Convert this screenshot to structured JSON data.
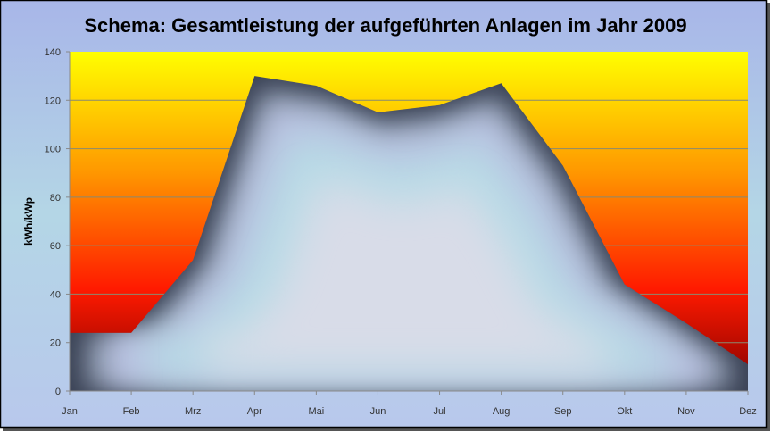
{
  "chart_data": {
    "type": "area",
    "title": "Schema: Gesamtleistung der aufgeführten Anlagen im Jahr 2009",
    "xlabel": "",
    "ylabel": "kWh/kWp",
    "categories": [
      "Jan",
      "Feb",
      "Mrz",
      "Apr",
      "Mai",
      "Jun",
      "Jul",
      "Aug",
      "Sep",
      "Okt",
      "Nov",
      "Dez"
    ],
    "values": [
      24,
      24,
      54,
      130,
      126,
      115,
      118,
      127,
      93,
      44,
      28,
      11
    ],
    "ylim": [
      0,
      140
    ],
    "yticks": [
      0,
      20,
      40,
      60,
      80,
      100,
      120,
      140
    ],
    "grid": true,
    "legend": "none",
    "colors": {
      "plot_background_top": "#ffff00",
      "plot_background_mid": "#ff0000",
      "plot_background_bottom": "#800000",
      "area_edge": "#3a4255",
      "area_center": "#d8dce8",
      "chart_background": "#a9b9e6"
    }
  }
}
